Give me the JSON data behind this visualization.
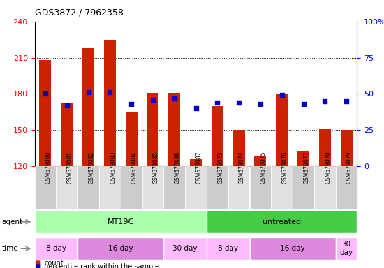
{
  "title": "GDS3872 / 7962358",
  "samples": [
    "GSM579080",
    "GSM579081",
    "GSM579082",
    "GSM579083",
    "GSM579084",
    "GSM579085",
    "GSM579086",
    "GSM579087",
    "GSM579073",
    "GSM579074",
    "GSM579075",
    "GSM579076",
    "GSM579077",
    "GSM579078",
    "GSM579079"
  ],
  "counts": [
    208,
    172,
    218,
    224,
    165,
    181,
    181,
    126,
    170,
    150,
    128,
    180,
    133,
    151,
    150
  ],
  "percentiles": [
    50,
    42,
    51,
    51,
    43,
    46,
    47,
    40,
    44,
    44,
    43,
    49,
    43,
    45,
    45
  ],
  "ylim_left": [
    120,
    240
  ],
  "ylim_right": [
    0,
    100
  ],
  "yticks_left": [
    120,
    150,
    180,
    210,
    240
  ],
  "yticks_right": [
    0,
    25,
    50,
    75,
    100
  ],
  "bar_color": "#cc2200",
  "dot_color": "#0000cc",
  "bg_color": "#ffffff",
  "plot_bg": "#ffffff",
  "agent_groups": [
    {
      "text": "MT19C",
      "start": 0,
      "end": 8,
      "color": "#aaffaa"
    },
    {
      "text": "untreated",
      "start": 8,
      "end": 15,
      "color": "#44cc44"
    }
  ],
  "time_groups": [
    {
      "text": "8 day",
      "start": 0,
      "end": 2,
      "color": "#ffbbff"
    },
    {
      "text": "16 day",
      "start": 2,
      "end": 6,
      "color": "#dd88dd"
    },
    {
      "text": "30 day",
      "start": 6,
      "end": 8,
      "color": "#ffbbff"
    },
    {
      "text": "8 day",
      "start": 8,
      "end": 10,
      "color": "#ffbbff"
    },
    {
      "text": "16 day",
      "start": 10,
      "end": 14,
      "color": "#dd88dd"
    },
    {
      "text": "30\nday",
      "start": 14,
      "end": 15,
      "color": "#ffbbff"
    }
  ]
}
